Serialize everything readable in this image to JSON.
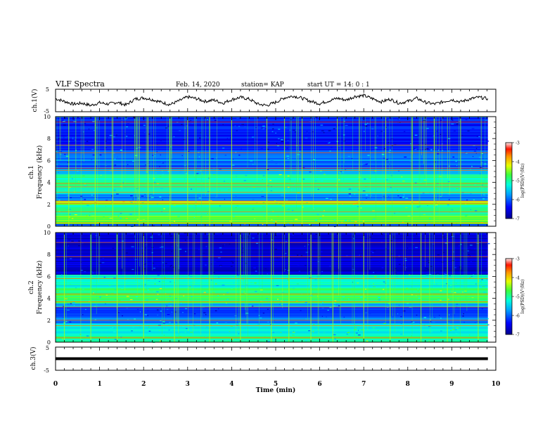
{
  "header": {
    "title": "VLF Spectra",
    "date": "Feb. 14, 2020",
    "station": "station= KAP",
    "start": "start  UT =   14: 0  : 1"
  },
  "chart_data": [
    {
      "type": "line",
      "name": "ch1-waveform",
      "ylabel": "ch.1(V)",
      "ylim": [
        -5,
        5
      ],
      "yticks": [
        "5",
        "-5"
      ],
      "xlim": [
        0,
        10
      ],
      "x_end": 9.82,
      "description_level": "noisy trace between about -2.5 and 2.5 V",
      "points": [
        [
          0.0,
          0.8
        ],
        [
          0.2,
          -0.4
        ],
        [
          0.4,
          -1.6
        ],
        [
          0.6,
          -1.2
        ],
        [
          0.8,
          -2.2
        ],
        [
          1.0,
          -1.0
        ],
        [
          1.2,
          -1.6
        ],
        [
          1.4,
          -0.8
        ],
        [
          1.6,
          -2.0
        ],
        [
          1.8,
          0.6
        ],
        [
          2.0,
          1.2
        ],
        [
          2.2,
          0.4
        ],
        [
          2.4,
          -0.8
        ],
        [
          2.6,
          -1.8
        ],
        [
          2.8,
          -0.2
        ],
        [
          3.0,
          1.6
        ],
        [
          3.2,
          0.8
        ],
        [
          3.4,
          -0.4
        ],
        [
          3.6,
          0.2
        ],
        [
          3.8,
          -1.2
        ],
        [
          4.0,
          0.4
        ],
        [
          4.2,
          1.4
        ],
        [
          4.4,
          0.6
        ],
        [
          4.6,
          -1.6
        ],
        [
          4.8,
          -2.2
        ],
        [
          5.0,
          -0.8
        ],
        [
          5.2,
          1.2
        ],
        [
          5.4,
          2.0
        ],
        [
          5.6,
          1.0
        ],
        [
          5.8,
          -0.4
        ],
        [
          6.0,
          -1.4
        ],
        [
          6.2,
          -0.2
        ],
        [
          6.4,
          1.0
        ],
        [
          6.6,
          0.2
        ],
        [
          6.8,
          1.8
        ],
        [
          7.0,
          2.2
        ],
        [
          7.2,
          0.8
        ],
        [
          7.4,
          -0.6
        ],
        [
          7.6,
          0.6
        ],
        [
          7.8,
          -1.2
        ],
        [
          8.0,
          -0.4
        ],
        [
          8.2,
          1.0
        ],
        [
          8.4,
          -0.8
        ],
        [
          8.6,
          -1.6
        ],
        [
          8.8,
          -0.6
        ],
        [
          9.0,
          0.4
        ],
        [
          9.2,
          -0.6
        ],
        [
          9.4,
          0.6
        ],
        [
          9.6,
          1.4
        ],
        [
          9.82,
          0.8
        ]
      ]
    },
    {
      "type": "heatmap",
      "name": "ch1-spectrogram",
      "ylabel_top": "ch.1",
      "ylabel": "Frequency (kHz)",
      "ylim": [
        0,
        10
      ],
      "yticks": [
        "0",
        "2",
        "4",
        "6",
        "8",
        "10"
      ],
      "xlim": [
        0,
        10
      ],
      "x_end": 9.82,
      "background_level": -6,
      "bands": [
        {
          "from": 0.2,
          "to": 1.0,
          "level": -4.6
        },
        {
          "from": 1.0,
          "to": 2.0,
          "level": -5.0
        },
        {
          "from": 2.0,
          "to": 2.4,
          "level": -4.4
        },
        {
          "from": 2.4,
          "to": 3.0,
          "level": -5.8
        },
        {
          "from": 3.0,
          "to": 3.5,
          "level": -5.2
        },
        {
          "from": 3.5,
          "to": 4.8,
          "level": -5.0
        },
        {
          "from": 4.8,
          "to": 5.2,
          "level": -5.5
        },
        {
          "from": 5.2,
          "to": 6.0,
          "level": -6.0
        },
        {
          "from": 6.0,
          "to": 7.0,
          "level": -5.8
        },
        {
          "from": 7.0,
          "to": 10.0,
          "level": -6.3
        }
      ],
      "lines_khz": [
        0.3,
        1.3,
        2.1,
        2.3,
        3.1,
        3.6,
        3.9,
        5.1,
        5.3,
        6.7,
        7.4,
        9.5
      ],
      "spikes_min": [
        0.3,
        0.9,
        1.3,
        1.9,
        2.1,
        2.6,
        3.0,
        3.5,
        4.0,
        4.8,
        5.2,
        5.6,
        6.4,
        6.9,
        7.5,
        8.1,
        8.6,
        9.2
      ],
      "colorbar": {
        "label": "log(PSD)(V²/Hz)",
        "range": [
          -7,
          -3
        ],
        "ticks": [
          "-3",
          "-4",
          "-5",
          "-6",
          "-7"
        ]
      }
    },
    {
      "type": "heatmap",
      "name": "ch2-spectrogram",
      "ylabel_top": "ch.2",
      "ylabel": "Frequency (kHz)",
      "ylim": [
        0,
        10
      ],
      "yticks": [
        "0",
        "2",
        "4",
        "6",
        "8",
        "10"
      ],
      "xlim": [
        0,
        10
      ],
      "x_end": 9.82,
      "background_level": -6.4,
      "bands": [
        {
          "from": 0.0,
          "to": 0.6,
          "level": -5.0
        },
        {
          "from": 0.6,
          "to": 1.8,
          "level": -5.3
        },
        {
          "from": 1.8,
          "to": 2.4,
          "level": -5.8
        },
        {
          "from": 2.4,
          "to": 3.2,
          "level": -6.2
        },
        {
          "from": 3.2,
          "to": 3.6,
          "level": -5.6
        },
        {
          "from": 3.6,
          "to": 5.0,
          "level": -4.8
        },
        {
          "from": 5.0,
          "to": 6.2,
          "level": -5.2
        },
        {
          "from": 6.2,
          "to": 10.0,
          "level": -6.6
        }
      ],
      "lines_khz": [
        0.4,
        1.5,
        2.0,
        3.2,
        3.7,
        4.4,
        5.8,
        7.8,
        9.1
      ],
      "spikes_min": [
        0.2,
        0.8,
        1.4,
        2.0,
        2.7,
        3.5,
        4.2,
        4.9,
        5.3,
        5.8,
        6.3,
        7.0,
        7.6,
        8.3,
        8.9,
        9.6
      ],
      "colorbar": {
        "label": "log(PSD)(V²/Hz)",
        "range": [
          -7,
          -3
        ],
        "ticks": [
          "-3",
          "-4",
          "-5",
          "-6",
          "-7"
        ]
      }
    },
    {
      "type": "line",
      "name": "ch3-waveform",
      "ylabel": "ch.3(V)",
      "ylim": [
        -5,
        5
      ],
      "yticks": [
        "5",
        "-5"
      ],
      "xlim": [
        0,
        10
      ],
      "x_end": 9.82,
      "constant_value": 0,
      "xlabel": "Time (min)",
      "xticks": [
        "0",
        "1",
        "2",
        "3",
        "4",
        "5",
        "6",
        "7",
        "8",
        "9",
        "10"
      ]
    }
  ]
}
